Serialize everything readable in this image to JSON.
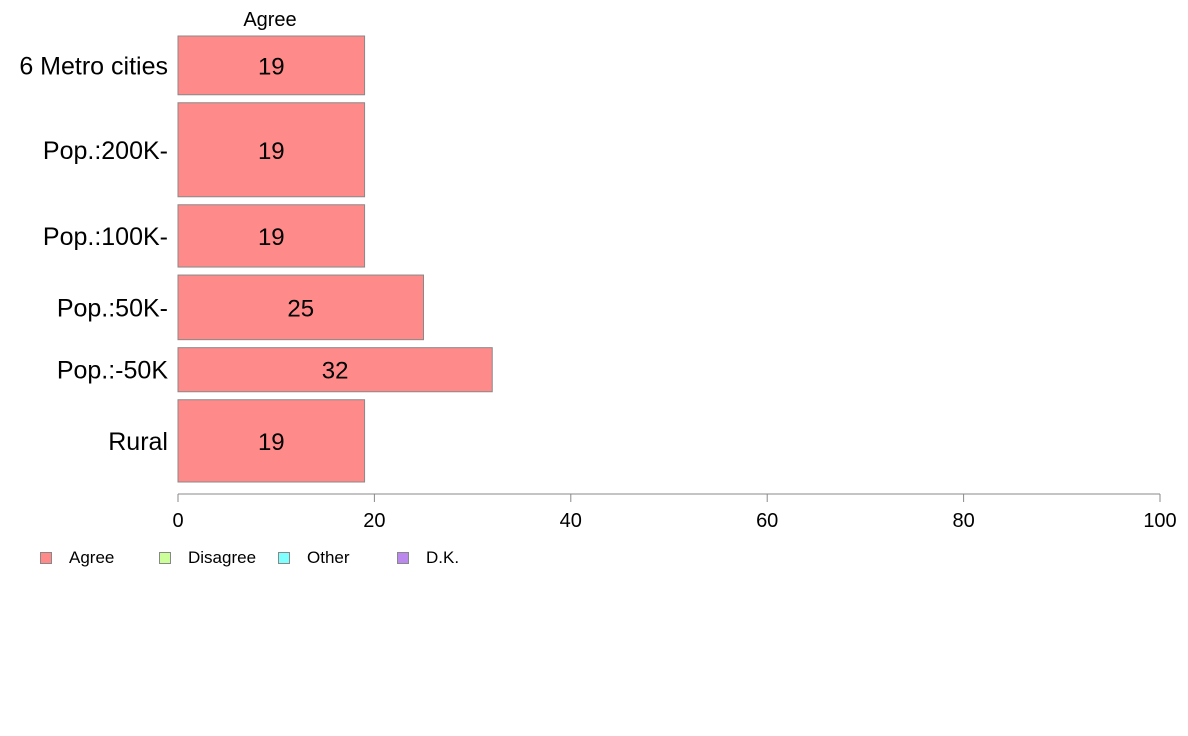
{
  "chart_data": {
    "type": "bar",
    "orientation": "horizontal",
    "series_header": "Agree",
    "categories": [
      "6 Metro cities",
      "Pop.:200K-",
      "Pop.:100K-",
      "Pop.:50K-",
      "Pop.:-50K",
      "Rural"
    ],
    "values": [
      19,
      19,
      19,
      25,
      32,
      19
    ],
    "value_labels": [
      "19",
      "19",
      "19",
      "25",
      "32",
      "19"
    ],
    "category_weights": [
      1.0,
      1.6,
      1.06,
      1.1,
      0.75,
      1.4
    ],
    "xlim": [
      0,
      100
    ],
    "xticks": [
      "0",
      "20",
      "40",
      "60",
      "80",
      "100"
    ],
    "grid": false,
    "bar_color": "#ff8a8a",
    "bar_border_color": "#888888",
    "legend_placement": "bottom-left",
    "legend": [
      {
        "label": "Agree",
        "color": "#ff8a8a"
      },
      {
        "label": "Disagree",
        "color": "#ccff99"
      },
      {
        "label": "Other",
        "color": "#80ffff"
      },
      {
        "label": "D.K.",
        "color": "#bb88ee"
      }
    ]
  }
}
